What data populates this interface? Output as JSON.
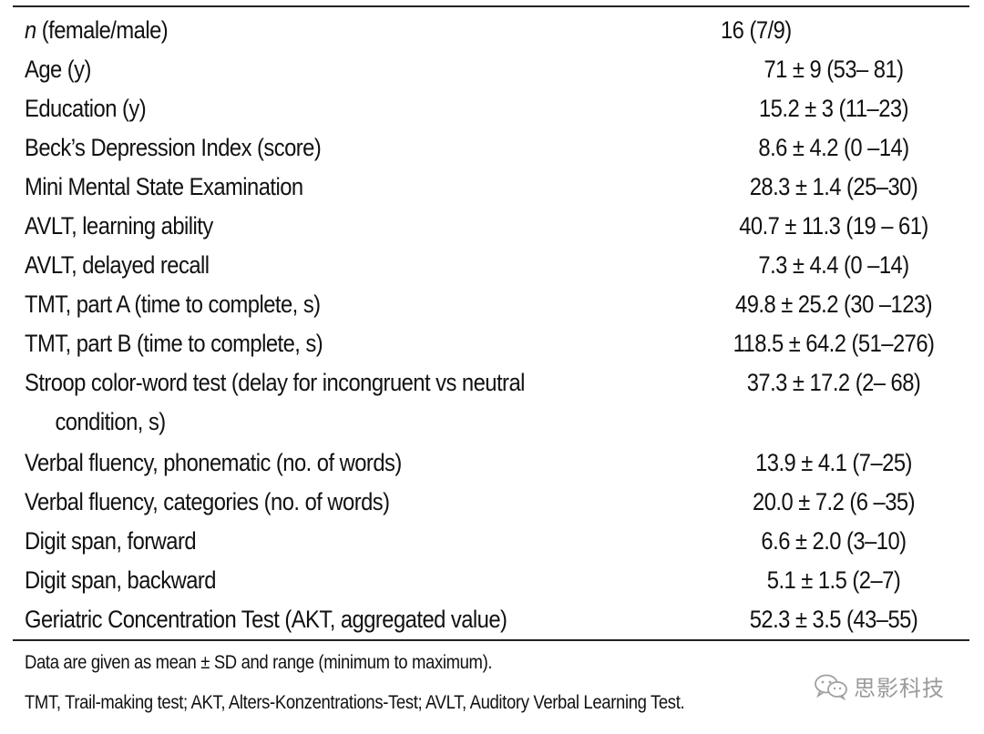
{
  "table": {
    "rows": [
      {
        "label_italic": "n",
        "label": " (female/male)",
        "value": "16 (7/9)",
        "align": "left"
      },
      {
        "label": "Age (y)",
        "value": "71 ± 9 (53– 81)"
      },
      {
        "label": "Education (y)",
        "value": "15.2 ± 3 (11–23)"
      },
      {
        "label": "Beck’s Depression Index (score)",
        "value": "8.6 ± 4.2 (0 –14)"
      },
      {
        "label": "Mini Mental State Examination",
        "value": "28.3 ± 1.4 (25–30)"
      },
      {
        "label": "AVLT, learning ability",
        "value": "40.7 ± 11.3 (19 – 61)"
      },
      {
        "label": "AVLT, delayed recall",
        "value": "7.3 ± 4.4 (0 –14)"
      },
      {
        "label": "TMT, part A (time to complete, s)",
        "value": "49.8 ± 25.2 (30 –123)"
      },
      {
        "label": "TMT, part B (time to complete, s)",
        "value": "118.5 ± 64.2 (51–276)"
      },
      {
        "label": "Stroop color-word test (delay for incongruent vs neutral",
        "label_cont": "condition, s)",
        "value": "37.3 ± 17.2 (2– 68)"
      },
      {
        "label": "Verbal fluency, phonematic (no. of words)",
        "value": "13.9 ± 4.1 (7–25)"
      },
      {
        "label": "Verbal fluency, categories (no. of words)",
        "value": "20.0 ± 7.2 (6 –35)"
      },
      {
        "label": "Digit span, forward",
        "value": "6.6 ± 2.0 (3–10)"
      },
      {
        "label": "Digit span, backward",
        "value": "5.1 ± 1.5 (2–7)"
      },
      {
        "label": "Geriatric Concentration Test (AKT, aggregated value)",
        "value": "52.3 ± 3.5 (43–55)"
      }
    ]
  },
  "footnotes": [
    "Data are given as mean ± SD and range (minimum to maximum).",
    "TMT, Trail-making test; AKT, Alters-Konzentrations-Test; AVLT, Auditory Verbal Learning Test."
  ],
  "watermark": {
    "text": "思影科技",
    "icon": "wechat-icon"
  }
}
